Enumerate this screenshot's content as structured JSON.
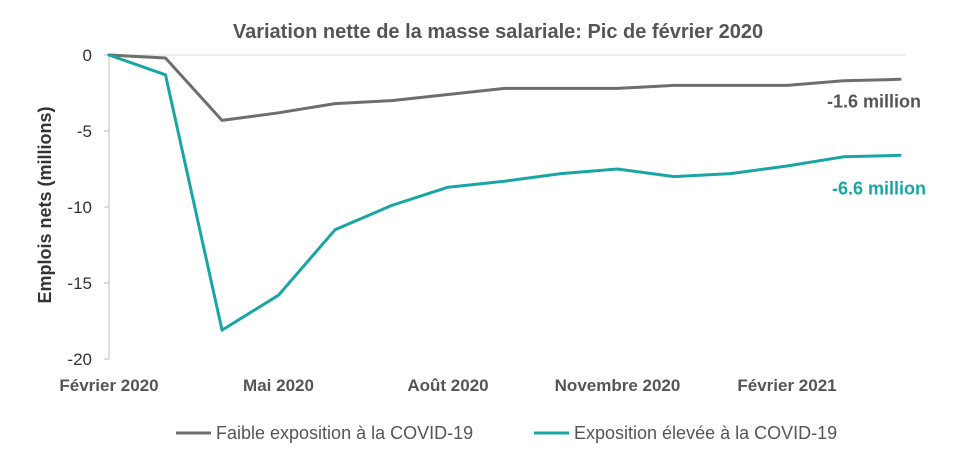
{
  "chart_data": {
    "type": "line",
    "title": "Variation nette de la masse salariale: Pic de février 2020",
    "xlabel": "",
    "ylabel": "Emplois nets (millions)",
    "ylim": [
      -20,
      0
    ],
    "yticks": [
      "0",
      "-5",
      "-10",
      "-15",
      "-20"
    ],
    "ytick_values": [
      0,
      -5,
      -10,
      -15,
      -20
    ],
    "x": [
      "2020-02",
      "2020-03",
      "2020-04",
      "2020-05",
      "2020-06",
      "2020-07",
      "2020-08",
      "2020-09",
      "2020-10",
      "2020-11",
      "2020-12",
      "2021-01",
      "2021-02",
      "2021-03",
      "2021-04"
    ],
    "xtick_labels": [
      {
        "label": "Février 2020",
        "x": "2020-02"
      },
      {
        "label": "Mai 2020",
        "x": "2020-05"
      },
      {
        "label": "Août 2020",
        "x": "2020-08"
      },
      {
        "label": "Novembre 2020",
        "x": "2020-11"
      },
      {
        "label": "Février 2021",
        "x": "2021-02"
      }
    ],
    "series": [
      {
        "name": "Faible exposition à la COVID-19",
        "color": "#6b706e",
        "values": [
          0,
          -0.2,
          -4.3,
          -3.8,
          -3.2,
          -3.0,
          -2.6,
          -2.2,
          -2.2,
          -2.2,
          -2.0,
          -2.0,
          -2.0,
          -1.7,
          -1.6
        ],
        "end_label": "-1.6 million"
      },
      {
        "name": "Exposition élevée à la COVID-19",
        "color": "#1aa5a5",
        "values": [
          0,
          -1.3,
          -18.1,
          -15.8,
          -11.5,
          -9.9,
          -8.7,
          -8.3,
          -7.8,
          -7.5,
          -8.0,
          -7.8,
          -7.3,
          -6.7,
          -6.6
        ],
        "end_label": "-6.6 million"
      }
    ],
    "grid": {
      "horizontal": true,
      "vertical": false,
      "gridline_color": "#d9d9d9"
    },
    "legend": "bottom"
  }
}
